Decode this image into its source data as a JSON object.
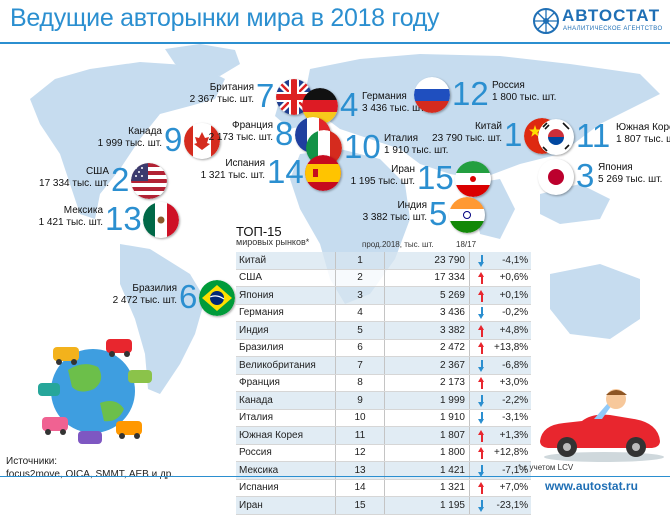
{
  "header": {
    "title": "Ведущие авторынки мира в 2018 году",
    "logo_name": "АВТОСТАТ",
    "logo_tagline": "АНАЛИТИЧЕСКОЕ АГЕНТСТВО"
  },
  "map_markers": [
    {
      "country": "Британия",
      "value": "2 367 тыс. шт.",
      "rank": "7",
      "flag": "uk-flag-icon"
    },
    {
      "country": "Германия",
      "value": "3 436 тыс. шт.",
      "rank": "4",
      "flag": "germany-flag-icon"
    },
    {
      "country": "Россия",
      "value": "1 800 тыс. шт.",
      "rank": "12",
      "flag": "russia-flag-icon"
    },
    {
      "country": "Канада",
      "value": "1 999 тыс. шт.",
      "rank": "9",
      "flag": "canada-flag-icon"
    },
    {
      "country": "Франция",
      "value": "2 173 тыс. шт.",
      "rank": "8",
      "flag": "france-flag-icon"
    },
    {
      "country": "Италия",
      "value": "1 910 тыс. шт.",
      "rank": "10",
      "flag": "italy-flag-icon"
    },
    {
      "country": "Китай",
      "value": "23 790 тыс. шт.",
      "rank": "1",
      "flag": "china-flag-icon"
    },
    {
      "country": "Южная Корея",
      "value": "1 807 тыс. шт.",
      "rank": "11",
      "flag": "south-korea-flag-icon"
    },
    {
      "country": "Испания",
      "value": "1 321 тыс. шт.",
      "rank": "14",
      "flag": "spain-flag-icon"
    },
    {
      "country": "Иран",
      "value": "1 195 тыс. шт.",
      "rank": "15",
      "flag": "iran-flag-icon"
    },
    {
      "country": "США",
      "value": "17 334 тыс. шт.",
      "rank": "2",
      "flag": "usa-flag-icon"
    },
    {
      "country": "Япония",
      "value": "5 269 тыс. шт.",
      "rank": "3",
      "flag": "japan-flag-icon"
    },
    {
      "country": "Индия",
      "value": "3 382 тыс. шт.",
      "rank": "5",
      "flag": "india-flag-icon"
    },
    {
      "country": "Мексика",
      "value": "1 421 тыс. шт.",
      "rank": "13",
      "flag": "mexico-flag-icon"
    },
    {
      "country": "Бразилия",
      "value": "2 472 тыс. шт.",
      "rank": "6",
      "flag": "brazil-flag-icon"
    }
  ],
  "chart_data": {
    "type": "table",
    "title": "ТОП-15",
    "subtitle": "мировых рынков*",
    "columns": [
      "",
      "",
      "прод.2018, тыс. шт.",
      "",
      "18/17"
    ],
    "rows": [
      {
        "name": "Китай",
        "rank": "1",
        "volume": "23 790",
        "volume_value": 23790,
        "direction": "down",
        "change": "-4,1%"
      },
      {
        "name": "США",
        "rank": "2",
        "volume": "17 334",
        "volume_value": 17334,
        "direction": "up",
        "change": "+0,6%"
      },
      {
        "name": "Япония",
        "rank": "3",
        "volume": "5 269",
        "volume_value": 5269,
        "direction": "up",
        "change": "+0,1%"
      },
      {
        "name": "Германия",
        "rank": "4",
        "volume": "3 436",
        "volume_value": 3436,
        "direction": "down",
        "change": "-0,2%"
      },
      {
        "name": "Индия",
        "rank": "5",
        "volume": "3 382",
        "volume_value": 3382,
        "direction": "up",
        "change": "+4,8%"
      },
      {
        "name": "Бразилия",
        "rank": "6",
        "volume": "2 472",
        "volume_value": 2472,
        "direction": "up",
        "change": "+13,8%"
      },
      {
        "name": "Великобритания",
        "rank": "7",
        "volume": "2 367",
        "volume_value": 2367,
        "direction": "down",
        "change": "-6,8%"
      },
      {
        "name": "Франция",
        "rank": "8",
        "volume": "2 173",
        "volume_value": 2173,
        "direction": "up",
        "change": "+3,0%"
      },
      {
        "name": "Канада",
        "rank": "9",
        "volume": "1 999",
        "volume_value": 1999,
        "direction": "down",
        "change": "-2,2%"
      },
      {
        "name": "Италия",
        "rank": "10",
        "volume": "1 910",
        "volume_value": 1910,
        "direction": "down",
        "change": "-3,1%"
      },
      {
        "name": "Южная Корея",
        "rank": "11",
        "volume": "1 807",
        "volume_value": 1807,
        "direction": "up",
        "change": "+1,3%"
      },
      {
        "name": "Россия",
        "rank": "12",
        "volume": "1 800",
        "volume_value": 1800,
        "direction": "up",
        "change": "+12,8%"
      },
      {
        "name": "Мексика",
        "rank": "13",
        "volume": "1 421",
        "volume_value": 1421,
        "direction": "down",
        "change": "-7,1%"
      },
      {
        "name": "Испания",
        "rank": "14",
        "volume": "1 321",
        "volume_value": 1321,
        "direction": "up",
        "change": "+7,0%"
      },
      {
        "name": "Иран",
        "rank": "15",
        "volume": "1 195",
        "volume_value": 1195,
        "direction": "down",
        "change": "-23,1%"
      }
    ]
  },
  "colors": {
    "accent": "#2b8fd0",
    "up": "#e8262e",
    "down": "#2b8fd0",
    "map": "#c6dcef"
  },
  "sources": {
    "line1": "Источники:",
    "line2": "focus2move, OICA, SMMT, AEB и др."
  },
  "footnote": "* с учетом LCV",
  "website": "www.autostat.ru"
}
